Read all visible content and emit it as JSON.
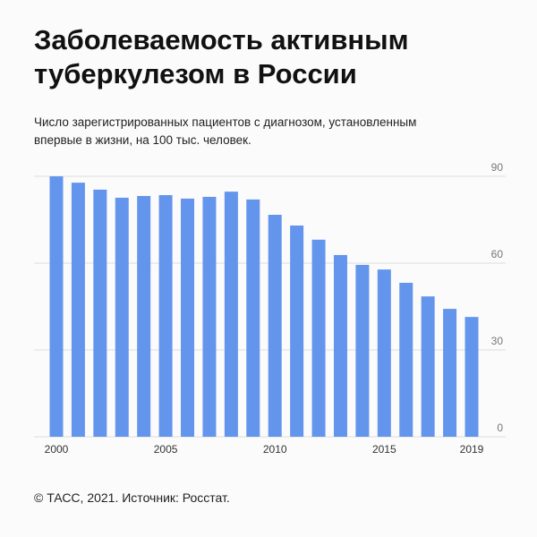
{
  "chart_data": {
    "type": "bar",
    "title": "Заболеваемость активным туберкулезом в России",
    "subtitle": "Число зарегистрированных пациентов с диагнозом, установленным впервые в жизни, на 100 тыс. человек.",
    "source": "© ТАСС, 2021. Источник: Росстат.",
    "categories": [
      "2000",
      null,
      null,
      null,
      null,
      "2005",
      null,
      null,
      null,
      null,
      "2010",
      null,
      null,
      null,
      null,
      "2015",
      null,
      null,
      null,
      "2019"
    ],
    "values": [
      90.0,
      87.8,
      85.4,
      82.6,
      83.2,
      83.5,
      82.3,
      82.9,
      84.7,
      82.0,
      76.7,
      73.0,
      68.1,
      62.8,
      59.4,
      57.8,
      53.2,
      48.5,
      44.2,
      41.4
    ],
    "color": "#6495ed",
    "ylim": [
      0,
      90
    ],
    "yticks": [
      0,
      30,
      60,
      90
    ],
    "grid": true
  }
}
